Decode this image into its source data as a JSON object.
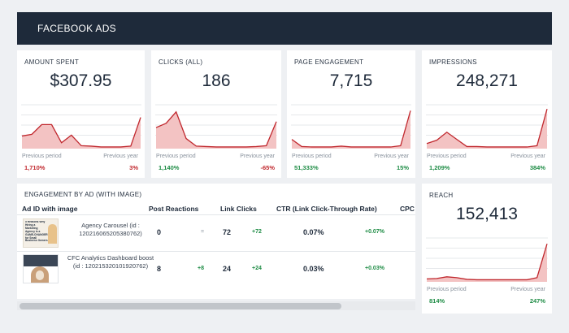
{
  "header": {
    "title": "FACEBOOK ADS"
  },
  "colors": {
    "header_bg": "#1e2a3a",
    "line": "#c0272d",
    "fill": "#f3c3c3",
    "positive": "#1e8c45",
    "negative": "#c0272d"
  },
  "kpis": [
    {
      "label": "AMOUNT SPENT",
      "value": "$307.95",
      "prev_label": "Previous period",
      "year_label": "Previous year",
      "prev_pct": "1,710%",
      "year_pct": "3%",
      "prev_tone": "red",
      "year_tone": "red",
      "series": [
        0.28,
        0.32,
        0.55,
        0.55,
        0.12,
        0.3,
        0.05,
        0.04,
        0.02,
        0.02,
        0.02,
        0.04,
        0.72
      ]
    },
    {
      "label": "CLICKS (ALL)",
      "value": "186",
      "prev_label": "Previous period",
      "year_label": "Previous year",
      "prev_pct": "1,140%",
      "year_pct": "-65%",
      "prev_tone": "green",
      "year_tone": "red",
      "series": [
        0.48,
        0.58,
        0.85,
        0.22,
        0.04,
        0.03,
        0.02,
        0.02,
        0.02,
        0.02,
        0.03,
        0.05,
        0.62
      ]
    },
    {
      "label": "PAGE ENGAGEMENT",
      "value": "7,715",
      "prev_label": "Previous period",
      "year_label": "Previous year",
      "prev_pct": "51,333%",
      "year_pct": "15%",
      "prev_tone": "green",
      "year_tone": "green",
      "series": [
        0.2,
        0.03,
        0.02,
        0.02,
        0.02,
        0.04,
        0.02,
        0.02,
        0.02,
        0.02,
        0.02,
        0.05,
        0.88
      ]
    },
    {
      "label": "IMPRESSIONS",
      "value": "248,271",
      "prev_label": "Previous period",
      "year_label": "Previous year",
      "prev_pct": "1,209%",
      "year_pct": "384%",
      "prev_tone": "green",
      "year_tone": "green",
      "series": [
        0.1,
        0.18,
        0.37,
        0.2,
        0.03,
        0.03,
        0.02,
        0.02,
        0.02,
        0.02,
        0.02,
        0.05,
        0.92
      ]
    }
  ],
  "reach": {
    "label": "REACH",
    "value": "152,413",
    "prev_label": "Previous period",
    "year_label": "Previous year",
    "prev_pct": "814%",
    "year_pct": "247%",
    "prev_tone": "green",
    "year_tone": "green",
    "series": [
      0.05,
      0.06,
      0.1,
      0.08,
      0.04,
      0.03,
      0.03,
      0.03,
      0.03,
      0.03,
      0.03,
      0.08,
      0.88
    ]
  },
  "engagement": {
    "label": "ENGAGEMENT BY AD (WITH IMAGE)",
    "columns": [
      "Ad ID with image",
      "Post Reactions",
      "Link Clicks",
      "CTR (Link Click-Through Rate)",
      "CPC"
    ],
    "rows": [
      {
        "name": "Agency Carousel (id : 120216065205380762)",
        "thumb_text": "5 Reasons Why Hiring a Marketing Agency is a GAME-CHANGER for Small Business Owners",
        "reactions": "0",
        "reactions_delta": "=",
        "clicks": "72",
        "clicks_delta": "+72",
        "ctr": "0.07%",
        "ctr_delta": "+0.07%"
      },
      {
        "name": "CFC Analytics Dashboard boost (id : 120215320101920762)",
        "thumb_text": "",
        "reactions": "8",
        "reactions_delta": "+8",
        "clicks": "24",
        "clicks_delta": "+24",
        "ctr": "0.03%",
        "ctr_delta": "+0.03%"
      }
    ]
  }
}
